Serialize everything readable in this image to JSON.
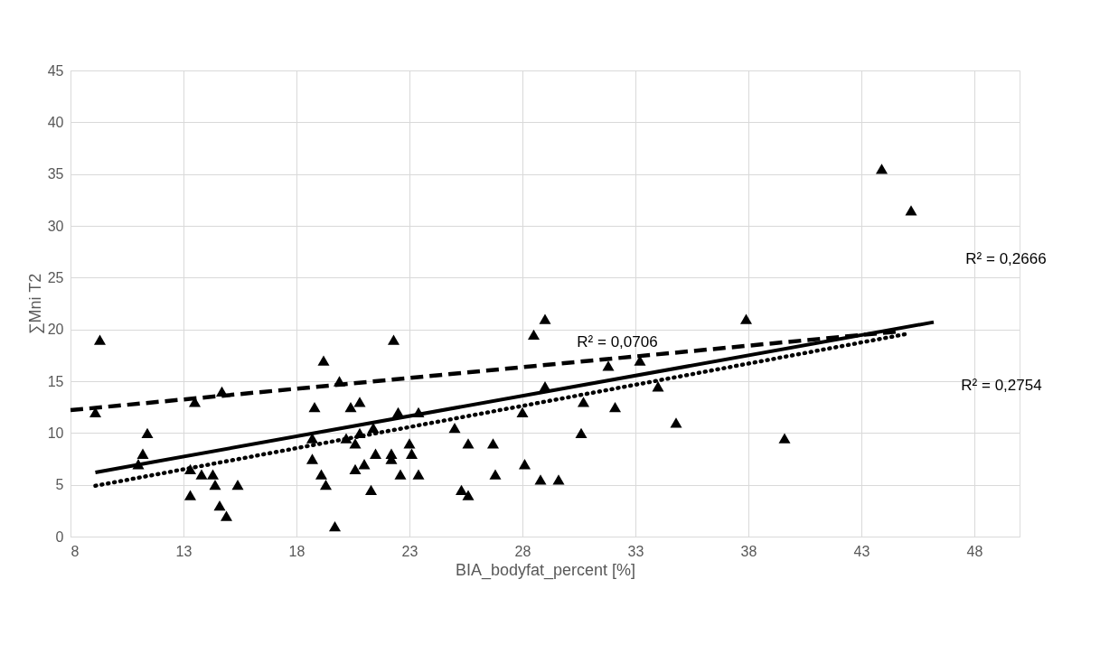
{
  "chart_data": {
    "type": "scatter",
    "xlabel": "BIA_bodyfat_percent [%]",
    "ylabel": "∑Mni T2",
    "xlim": [
      8,
      50
    ],
    "ylim": [
      0,
      45
    ],
    "xticks": [
      8,
      13,
      18,
      23,
      28,
      33,
      38,
      43,
      48
    ],
    "yticks": [
      0,
      5,
      10,
      15,
      20,
      25,
      30,
      35,
      40,
      45
    ],
    "grid": true,
    "series": [
      {
        "color": "#000000",
        "marker": "triangle",
        "x": [
          9.3,
          9.1,
          11.4,
          11.2,
          11.0,
          13.5,
          14.7,
          13.3,
          13.8,
          14.3,
          14.4,
          13.3,
          14.6,
          14.9,
          15.4,
          19.2,
          19.9,
          18.8,
          20.4,
          20.8,
          22.3,
          18.7,
          20.2,
          20.8,
          20.6,
          21.4,
          18.7,
          19.1,
          19.3,
          19.7,
          20.6,
          21.0,
          21.5,
          21.3,
          22.2,
          22.2,
          23.0,
          23.1,
          22.6,
          23.4,
          22.5,
          23.4,
          29.0,
          28.5,
          25.0,
          25.6,
          26.7,
          25.3,
          25.6,
          26.8,
          28.0,
          29.0,
          28.1,
          28.8,
          29.6,
          30.6,
          30.7,
          31.8,
          33.2,
          32.1,
          34.0,
          34.8,
          37.9,
          39.6,
          43.9,
          45.2
        ],
        "values": [
          19,
          12,
          10,
          8,
          7,
          13,
          14,
          6.5,
          6,
          6,
          5,
          4,
          3,
          2,
          5,
          17,
          15,
          12.5,
          12.5,
          13,
          19,
          9.5,
          9.5,
          10,
          9,
          10.5,
          7.5,
          6,
          5,
          1,
          6.5,
          7,
          8,
          4.5,
          8,
          7.5,
          9,
          8,
          6,
          6,
          12,
          12,
          21,
          19.5,
          10.5,
          9,
          9,
          4.5,
          4,
          6,
          12,
          14.5,
          7,
          5.5,
          5.5,
          10,
          13,
          16.5,
          17,
          12.5,
          14.5,
          11,
          21,
          9.5,
          35.5,
          31.5
        ]
      },
      {
        "type": "line",
        "color": "#000000",
        "line_style": "dashed",
        "x": [
          8,
          44.6
        ],
        "values": [
          12.2,
          19.8
        ]
      },
      {
        "type": "line",
        "color": "#000000",
        "line_style": "solid",
        "x": [
          9.1,
          46.2
        ],
        "values": [
          6.2,
          20.7
        ]
      },
      {
        "type": "line",
        "color": "#000000",
        "line_style": "dotted",
        "x": [
          9.1,
          45.1
        ],
        "values": [
          4.9,
          19.6
        ]
      }
    ],
    "annotations": [
      "R² = 0,0706",
      "R² = 0,2666",
      "R² = 0,2754"
    ]
  }
}
